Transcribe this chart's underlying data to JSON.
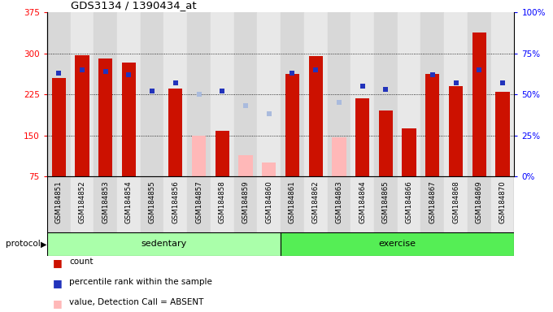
{
  "title": "GDS3134 / 1390434_at",
  "samples": [
    "GSM184851",
    "GSM184852",
    "GSM184853",
    "GSM184854",
    "GSM184855",
    "GSM184856",
    "GSM184857",
    "GSM184858",
    "GSM184859",
    "GSM184860",
    "GSM184861",
    "GSM184862",
    "GSM184863",
    "GSM184864",
    "GSM184865",
    "GSM184866",
    "GSM184867",
    "GSM184868",
    "GSM184869",
    "GSM184870"
  ],
  "counts": [
    255,
    297,
    290,
    283,
    null,
    235,
    null,
    158,
    null,
    null,
    262,
    295,
    null,
    218,
    195,
    163,
    262,
    240,
    338,
    230
  ],
  "absent_values": [
    null,
    null,
    null,
    null,
    null,
    null,
    150,
    null,
    113,
    100,
    null,
    null,
    147,
    null,
    null,
    null,
    null,
    null,
    null,
    null
  ],
  "percentile_ranks": [
    63,
    65,
    64,
    62,
    52,
    57,
    null,
    52,
    null,
    null,
    63,
    65,
    null,
    55,
    53,
    null,
    62,
    57,
    65,
    57
  ],
  "absent_ranks": [
    null,
    null,
    null,
    null,
    null,
    null,
    50,
    null,
    43,
    38,
    null,
    null,
    45,
    null,
    null,
    null,
    null,
    null,
    null,
    null
  ],
  "sedentary_count": 10,
  "exercise_count": 10,
  "ymin": 75,
  "ymax": 375,
  "yticks": [
    75,
    150,
    225,
    300,
    375
  ],
  "right_yticks": [
    0,
    25,
    50,
    75,
    100
  ],
  "bar_color": "#CC1100",
  "absent_bar_color": "#FFB8B8",
  "rank_color": "#2233BB",
  "absent_rank_color": "#AABBDD",
  "sedentary_color": "#AAFFAA",
  "exercise_color": "#55EE55",
  "bg_even": "#D8D8D8",
  "bg_odd": "#E8E8E8"
}
